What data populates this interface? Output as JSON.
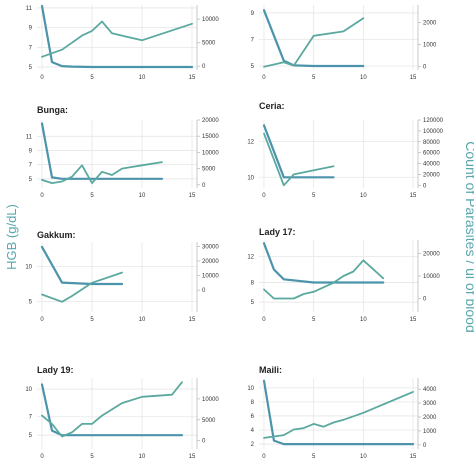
{
  "chart_data": {
    "type": "line",
    "shared_ylabel_left": "HGB (g/dL)",
    "shared_ylabel_right": "Count of Parasites / ul of blood",
    "colors": {
      "hgb": "#4c93ac",
      "parasites": "#5aa99f",
      "grid": "#e6e6e6"
    },
    "grid": true,
    "panels": [
      {
        "title": "",
        "xlim": [
          -0.5,
          15.5
        ],
        "xticks": [
          0,
          5,
          10,
          15
        ],
        "left_ylim": [
          4.7,
          11.3
        ],
        "left_ticks": [
          5,
          7,
          9,
          11
        ],
        "right_ylim": [
          -800,
          13000
        ],
        "right_ticks": [
          0,
          5000,
          10000
        ],
        "series": [
          {
            "axis": "left",
            "x": [
              0,
              1,
              2,
              3,
              5,
              15
            ],
            "y": [
              11.2,
              5.5,
              5.1,
              5.05,
              5.0,
              5.0
            ]
          },
          {
            "axis": "right",
            "x": [
              0,
              2,
              3,
              4,
              5,
              6,
              7,
              10,
              15
            ],
            "y": [
              2000,
              3500,
              5000,
              6500,
              7500,
              9500,
              7000,
              5500,
              9000
            ]
          }
        ]
      },
      {
        "title": "",
        "xlim": [
          -0.5,
          15.5
        ],
        "xticks": [
          0,
          5,
          10,
          15
        ],
        "left_ylim": [
          4.7,
          9.6
        ],
        "left_ticks": [
          5,
          7,
          9
        ],
        "right_ylim": [
          -150,
          2800
        ],
        "right_ticks": [
          0,
          1000,
          2000
        ],
        "series": [
          {
            "axis": "left",
            "x": [
              0,
              2,
              3,
              5,
              10
            ],
            "y": [
              9.2,
              5.4,
              5.05,
              5.0,
              5.0
            ]
          },
          {
            "axis": "right",
            "x": [
              0,
              2,
              3,
              5,
              8,
              10
            ],
            "y": [
              0,
              200,
              50,
              1400,
              1600,
              2200
            ]
          }
        ]
      },
      {
        "title": "Bunga:",
        "xlim": [
          -0.5,
          15.5
        ],
        "xticks": [
          0,
          5,
          10,
          15
        ],
        "left_ylim": [
          3.7,
          13.3
        ],
        "left_ticks": [
          5,
          7,
          9,
          11
        ],
        "right_ylim": [
          -1000,
          20000
        ],
        "right_ticks": [
          0,
          5000,
          10000,
          15000,
          20000
        ],
        "series": [
          {
            "axis": "left",
            "x": [
              0,
              1,
              2,
              5,
              12
            ],
            "y": [
              12.8,
              5.2,
              5.0,
              5.0,
              5.0
            ]
          },
          {
            "axis": "right",
            "x": [
              0,
              1,
              2,
              3,
              4,
              5,
              6,
              7,
              8,
              10,
              12
            ],
            "y": [
              1500,
              500,
              1000,
              2500,
              6000,
              500,
              4000,
              3000,
              5000,
              6000,
              7000
            ]
          }
        ]
      },
      {
        "title": "Ceria:",
        "xlim": [
          -0.5,
          15.5
        ],
        "xticks": [
          0,
          5,
          10,
          15
        ],
        "left_ylim": [
          9.4,
          13.2
        ],
        "left_ticks": [
          10,
          12
        ],
        "right_ylim": [
          -5000,
          120000
        ],
        "right_ticks": [
          0,
          20000,
          40000,
          60000,
          80000,
          100000,
          120000
        ],
        "series": [
          {
            "axis": "left",
            "x": [
              0,
              2,
              3,
              7
            ],
            "y": [
              12.9,
              10.0,
              10.0,
              10.0
            ]
          },
          {
            "axis": "right",
            "x": [
              0,
              2,
              3,
              7
            ],
            "y": [
              95000,
              0,
              20000,
              35000
            ]
          }
        ]
      },
      {
        "title": "Gakkum:",
        "xlim": [
          -0.5,
          15.5
        ],
        "xticks": [
          0,
          5,
          10,
          15
        ],
        "left_ylim": [
          3.5,
          13.5
        ],
        "left_ticks": [
          5,
          10
        ],
        "right_ylim": [
          -15000,
          33000
        ],
        "right_ticks": [
          0,
          10000,
          20000,
          30000
        ],
        "series": [
          {
            "axis": "left",
            "x": [
              0,
              2,
              5,
              8
            ],
            "y": [
              12.8,
              7.7,
              7.5,
              7.5
            ]
          },
          {
            "axis": "right",
            "x": [
              0,
              2,
              3,
              5,
              8
            ],
            "y": [
              -3000,
              -8000,
              -4000,
              5000,
              12000
            ]
          }
        ]
      },
      {
        "title": "Lady 17:",
        "xlim": [
          -0.5,
          15.5
        ],
        "xticks": [
          0,
          5,
          10,
          15
        ],
        "left_ylim": [
          3.5,
          14.5
        ],
        "left_ticks": [
          5,
          8,
          12
        ],
        "right_ylim": [
          -6000,
          26000
        ],
        "right_ticks": [
          0,
          10000,
          20000
        ],
        "series": [
          {
            "axis": "left",
            "x": [
              0,
              1,
              2,
              5,
              12
            ],
            "y": [
              14.0,
              10.0,
              8.5,
              8.0,
              8.0
            ]
          },
          {
            "axis": "right",
            "x": [
              0,
              1,
              3,
              4,
              5,
              6,
              7,
              8,
              9,
              10,
              11,
              12
            ],
            "y": [
              4000,
              0,
              0,
              2000,
              3000,
              5000,
              7000,
              10000,
              12000,
              17000,
              13000,
              9000
            ]
          }
        ]
      },
      {
        "title": "Lady 19:",
        "xlim": [
          -0.5,
          15.5
        ],
        "xticks": [
          0,
          5,
          10,
          15
        ],
        "left_ylim": [
          3.5,
          11.2
        ],
        "left_ticks": [
          5,
          7,
          10
        ],
        "right_ylim": [
          -2000,
          15000
        ],
        "right_ticks": [
          0,
          5000,
          10000
        ],
        "series": [
          {
            "axis": "left",
            "x": [
              0,
              1,
              2,
              5,
              14
            ],
            "y": [
              10.5,
              5.5,
              5.0,
              5.0,
              5.0
            ]
          },
          {
            "axis": "right",
            "x": [
              0,
              1,
              2,
              3,
              4,
              5,
              6,
              8,
              10,
              13,
              14
            ],
            "y": [
              6000,
              4000,
              1000,
              2000,
              4000,
              4000,
              6000,
              9000,
              10500,
              11000,
              14000
            ]
          }
        ]
      },
      {
        "title": "Maili:",
        "xlim": [
          -0.5,
          15.5
        ],
        "xticks": [
          0,
          5,
          10,
          15
        ],
        "left_ylim": [
          1.3,
          11.4
        ],
        "left_ticks": [
          2,
          4,
          6,
          8,
          10
        ],
        "right_ylim": [
          -300,
          4800
        ],
        "right_ticks": [
          0,
          1000,
          2000,
          3000,
          4000
        ],
        "series": [
          {
            "axis": "left",
            "x": [
              0,
              1,
              2,
              5,
              15
            ],
            "y": [
              11.0,
              2.5,
              2.0,
              2.0,
              2.0
            ]
          },
          {
            "axis": "right",
            "x": [
              0,
              2,
              3,
              4,
              5,
              6,
              7,
              8,
              10,
              15
            ],
            "y": [
              500,
              700,
              1100,
              1200,
              1500,
              1300,
              1600,
              1800,
              2300,
              3800
            ]
          }
        ]
      }
    ]
  }
}
